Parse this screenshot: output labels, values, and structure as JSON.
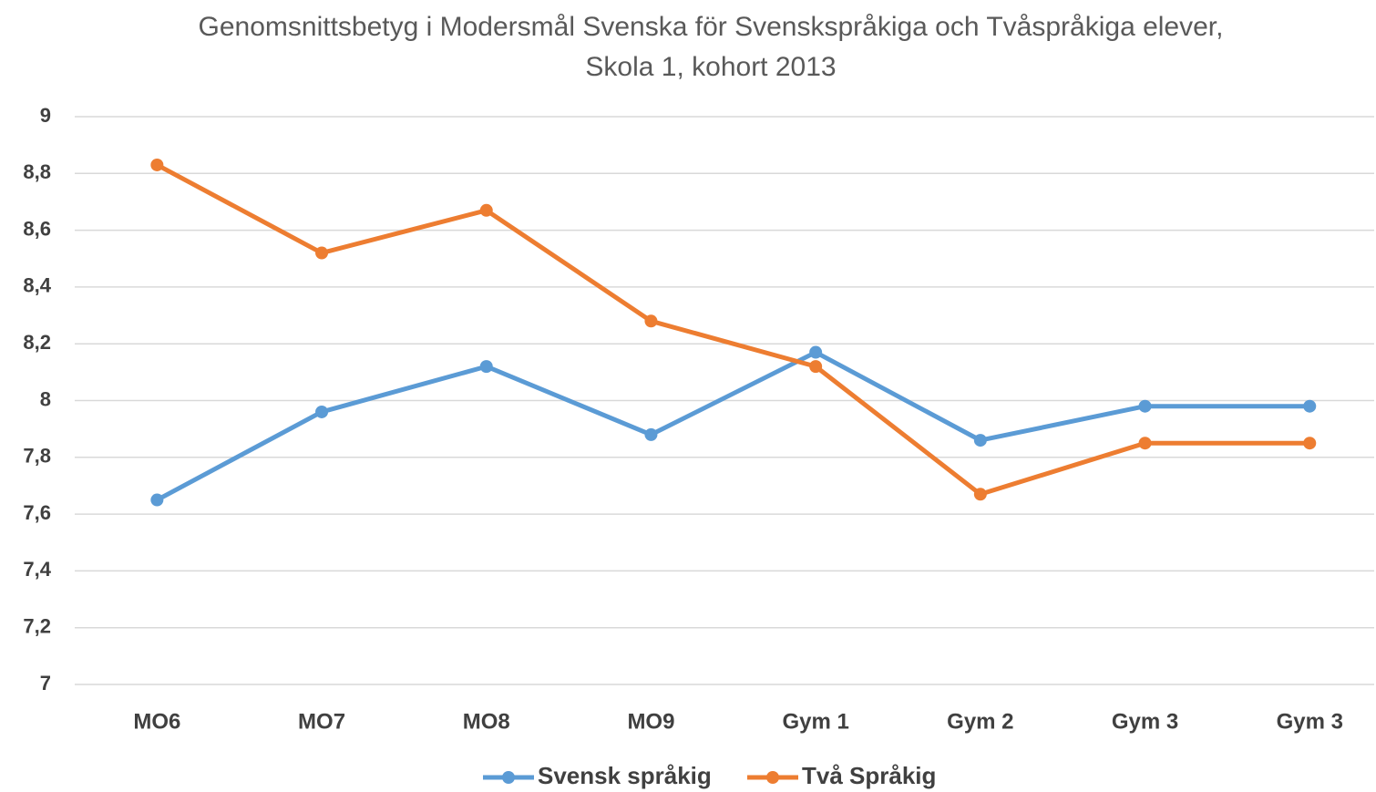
{
  "chart_data": {
    "type": "line",
    "title": "Genomsnittsbetyg i Modersmål Svenska för Svenskspråkiga och Tvåspråkiga elever, Skola 1, kohort 2013",
    "categories": [
      "MO6",
      "MO7",
      "MO8",
      "MO9",
      "Gym 1",
      "Gym 2",
      "Gym 3",
      "Gym 3"
    ],
    "series": [
      {
        "name": "Svensk språkig",
        "color": "#5b9bd5",
        "values": [
          7.65,
          7.96,
          8.12,
          7.88,
          8.17,
          7.86,
          7.98,
          7.98
        ]
      },
      {
        "name": "Två Språkig",
        "color": "#ed7d31",
        "values": [
          8.83,
          8.52,
          8.67,
          8.28,
          8.12,
          7.67,
          7.85,
          7.85
        ]
      }
    ],
    "ylim": [
      7,
      9
    ],
    "yticks": [
      7,
      {
        "value": 7.2,
        "label": "7,2"
      },
      {
        "value": 7.4,
        "label": "7,4"
      },
      {
        "value": 7.6,
        "label": "7,6"
      },
      {
        "value": 7.8,
        "label": "7,8"
      },
      8,
      {
        "value": 8.2,
        "label": "8,2"
      },
      {
        "value": 8.4,
        "label": "8,4"
      },
      {
        "value": 8.6,
        "label": "8,6"
      },
      {
        "value": 8.8,
        "label": "8,8"
      },
      9
    ],
    "grid": true,
    "legend": "bottom"
  }
}
